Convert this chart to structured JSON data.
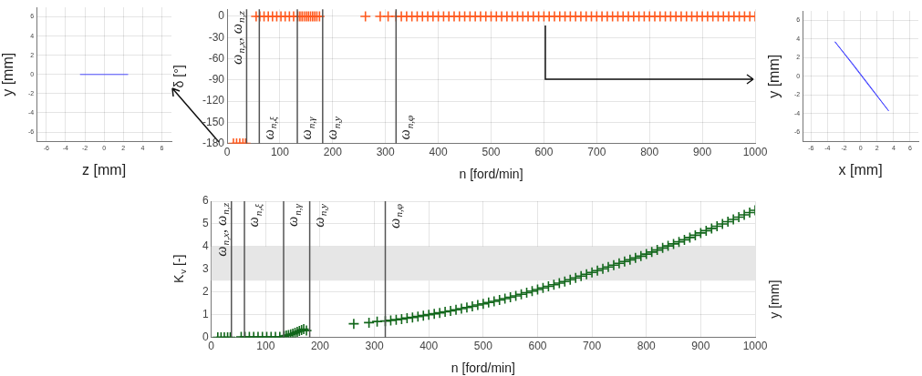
{
  "chart_data": [
    {
      "type": "line",
      "xlabel": "z [mm]",
      "ylabel": "y [mm]",
      "xlim": [
        -7,
        7
      ],
      "ylim": [
        -7,
        7
      ],
      "xticks": [
        -6,
        -4,
        -2,
        0,
        2,
        4,
        6
      ],
      "yticks": [
        -6,
        -4,
        -2,
        0,
        2,
        4,
        6
      ],
      "grid": true,
      "marker": "none",
      "line_style": "solid",
      "series": [
        {
          "color": "#4d4dff",
          "x": [
            -2.5,
            0,
            2.5
          ],
          "values": [
            0,
            0,
            0
          ]
        }
      ]
    },
    {
      "type": "scatter",
      "xlabel": "n [ford/min]",
      "ylabel": "δ [°]",
      "xlim": [
        0,
        1000
      ],
      "ylim": [
        -180,
        10
      ],
      "xticks": [
        0,
        100,
        200,
        300,
        400,
        500,
        600,
        700,
        800,
        900,
        1000
      ],
      "yticks": [
        0,
        -30,
        -60,
        -90,
        -120,
        -150,
        -180
      ],
      "grid": true,
      "marker": "cross",
      "ref_lines": [
        {
          "axis": "x",
          "value": 37,
          "label": "ω$_{n,x}$, ω$_{n,z}$",
          "color": "#555555"
        },
        {
          "axis": "x",
          "value": 61,
          "label": "ω$_{n,ξ}$",
          "color": "#555555"
        },
        {
          "axis": "x",
          "value": 133,
          "label": "ω$_{n,γ}$",
          "color": "#555555"
        },
        {
          "axis": "x",
          "value": 181,
          "label": "ω$_{n,y}$",
          "color": "#555555"
        },
        {
          "axis": "x",
          "value": 320,
          "label": "ω$_{n,φ}$",
          "color": "#555555"
        }
      ],
      "series": [
        {
          "color": "#ff5a1f",
          "x": [
            12,
            18,
            24,
            30,
            35,
            55,
            62,
            70,
            78,
            86,
            94,
            102,
            110,
            118,
            126,
            134,
            138,
            142,
            146,
            150,
            154,
            158,
            162,
            166,
            170,
            175,
            262,
            290,
            305,
            320,
            330,
            340,
            350,
            360,
            370,
            380,
            390,
            400,
            410,
            420,
            430,
            440,
            450,
            460,
            470,
            480,
            490,
            500,
            510,
            520,
            530,
            540,
            550,
            560,
            570,
            580,
            590,
            600,
            610,
            620,
            630,
            640,
            650,
            660,
            670,
            680,
            690,
            700,
            710,
            720,
            730,
            740,
            750,
            760,
            770,
            780,
            790,
            800,
            810,
            820,
            830,
            840,
            850,
            860,
            870,
            880,
            890,
            900,
            910,
            920,
            930,
            940,
            950,
            960,
            970,
            980,
            990,
            1000
          ],
          "values": [
            -180,
            -180,
            -180,
            -180,
            -180,
            0,
            0,
            0,
            0,
            0,
            0,
            0,
            0,
            0,
            0,
            0,
            0,
            0,
            0,
            0,
            0,
            0,
            0,
            0,
            0,
            0,
            0,
            0,
            0,
            0,
            0,
            0,
            0,
            0,
            0,
            0,
            0,
            0,
            0,
            0,
            0,
            0,
            0,
            0,
            0,
            0,
            0,
            0,
            0,
            0,
            0,
            0,
            0,
            0,
            0,
            0,
            0,
            0,
            0,
            0,
            0,
            0,
            0,
            0,
            0,
            0,
            0,
            0,
            0,
            0,
            0,
            0,
            0,
            0,
            0,
            0,
            0,
            0,
            0,
            0,
            0,
            0,
            0,
            0,
            0,
            0,
            0,
            0,
            0,
            0,
            0,
            0,
            0,
            0,
            0,
            0,
            0,
            0
          ]
        }
      ]
    },
    {
      "type": "line",
      "xlabel": "x [mm]",
      "ylabel": "y [mm]",
      "xlim": [
        -7,
        7
      ],
      "ylim": [
        -7,
        7
      ],
      "xticks": [
        -6,
        -4,
        -2,
        0,
        2,
        4,
        6
      ],
      "yticks": [
        -6,
        -4,
        -2,
        0,
        2,
        4,
        6
      ],
      "grid": true,
      "marker": "none",
      "line_style": "solid",
      "series": [
        {
          "color": "#4d4dff",
          "x": [
            -3.1,
            -1,
            1,
            3.4
          ],
          "values": [
            3.7,
            1.4,
            -0.9,
            -3.7
          ]
        },
        {
          "color": "#4d4dff",
          "x": [
            3.4,
            1.1,
            -0.9,
            -3.1
          ],
          "values": [
            -3.7,
            -1.1,
            1.2,
            3.7
          ]
        }
      ]
    },
    {
      "type": "scatter",
      "xlabel": "n [ford/min]",
      "ylabel": "K$_{v}$ [-]",
      "xlim": [
        0,
        1000
      ],
      "ylim": [
        0,
        6
      ],
      "xticks": [
        0,
        100,
        200,
        300,
        400,
        500,
        600,
        700,
        800,
        900,
        1000
      ],
      "yticks": [
        0,
        1,
        2,
        3,
        4,
        5,
        6
      ],
      "grid": true,
      "marker": "cross",
      "annotations": [
        "y [mm]"
      ],
      "bands": [
        {
          "axis": "y",
          "from": 2.5,
          "to": 4,
          "color": "#e6e6e6"
        }
      ],
      "ref_lines": [
        {
          "axis": "x",
          "value": 37,
          "label": "ω$_{n,x}$, ω$_{n,z}$",
          "color": "#555555"
        },
        {
          "axis": "x",
          "value": 61,
          "label": "ω$_{n,ξ}$",
          "color": "#555555"
        },
        {
          "axis": "x",
          "value": 133,
          "label": "ω$_{n,γ}$",
          "color": "#555555"
        },
        {
          "axis": "x",
          "value": 181,
          "label": "ω$_{n,y}$",
          "color": "#555555"
        },
        {
          "axis": "x",
          "value": 320,
          "label": "ω$_{n,φ}$",
          "color": "#555555"
        }
      ],
      "series": [
        {
          "color": "#11661a",
          "x": [
            12,
            18,
            24,
            30,
            35,
            55,
            62,
            70,
            78,
            86,
            94,
            102,
            110,
            118,
            126,
            134,
            138,
            142,
            146,
            150,
            154,
            158,
            162,
            166,
            170,
            175,
            262,
            290,
            305,
            320,
            330,
            340,
            350,
            360,
            370,
            380,
            390,
            400,
            410,
            420,
            430,
            440,
            450,
            460,
            470,
            480,
            490,
            500,
            510,
            520,
            530,
            540,
            550,
            560,
            570,
            580,
            590,
            600,
            610,
            620,
            630,
            640,
            650,
            660,
            670,
            680,
            690,
            700,
            710,
            720,
            730,
            740,
            750,
            760,
            770,
            780,
            790,
            800,
            810,
            820,
            830,
            840,
            850,
            860,
            870,
            880,
            890,
            900,
            910,
            920,
            930,
            940,
            950,
            960,
            970,
            980,
            990,
            1000
          ],
          "values": [
            0,
            0,
            0,
            0,
            0,
            0.02,
            0.02,
            0.02,
            0.02,
            0.02,
            0.02,
            0.02,
            0.02,
            0.02,
            0.02,
            0.06,
            0.08,
            0.1,
            0.13,
            0.16,
            0.2,
            0.24,
            0.28,
            0.32,
            0.36,
            0.3,
            0.6,
            0.65,
            0.7,
            0.72,
            0.75,
            0.78,
            0.81,
            0.85,
            0.88,
            0.92,
            0.96,
            1.0,
            1.04,
            1.08,
            1.13,
            1.17,
            1.22,
            1.27,
            1.32,
            1.37,
            1.43,
            1.48,
            1.54,
            1.59,
            1.65,
            1.71,
            1.77,
            1.83,
            1.9,
            1.97,
            2.04,
            2.11,
            2.18,
            2.25,
            2.32,
            2.39,
            2.46,
            2.54,
            2.62,
            2.7,
            2.78,
            2.86,
            2.94,
            3.02,
            3.1,
            3.18,
            3.26,
            3.34,
            3.42,
            3.5,
            3.58,
            3.67,
            3.76,
            3.85,
            3.94,
            4.03,
            4.12,
            4.21,
            4.3,
            4.4,
            4.5,
            4.6,
            4.7,
            4.8,
            4.9,
            5.0,
            5.1,
            5.2,
            5.3,
            5.4,
            5.5,
            5.6
          ]
        }
      ]
    }
  ]
}
